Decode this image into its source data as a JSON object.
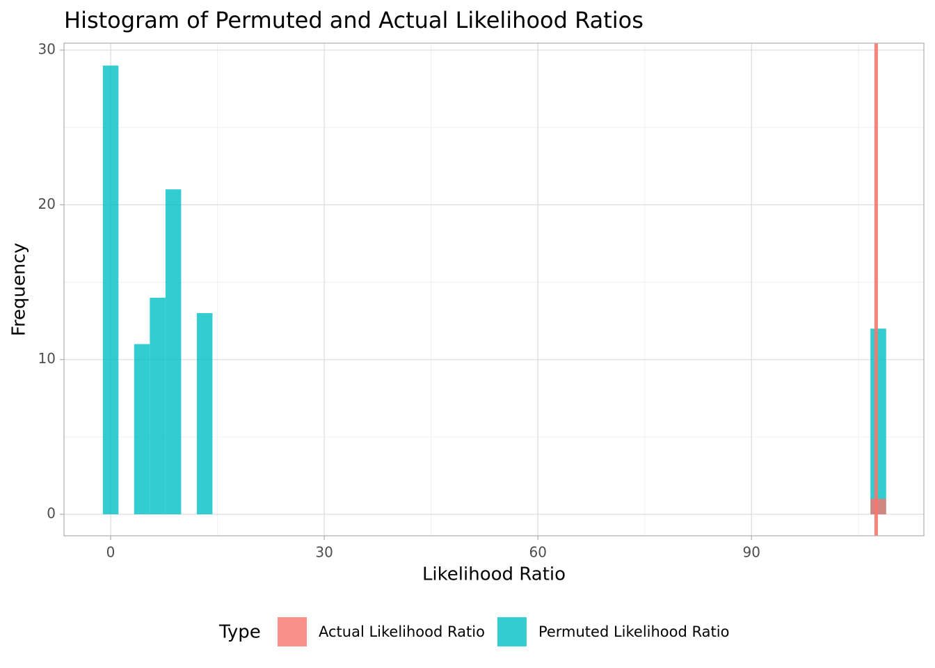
{
  "chart_data": {
    "type": "histogram",
    "title": "Histogram of Permuted and Actual Likelihood Ratios",
    "x_label": "Likelihood Ratio",
    "y_label": "Frequency",
    "legend_title": "Type",
    "legend_position": "bottom",
    "grid": true,
    "bins": [
      -1.1,
      1.1,
      3.3,
      5.5,
      7.7,
      9.9,
      12.1,
      14.3,
      16.5,
      18.7,
      20.9,
      23.1,
      25.3,
      27.5,
      29.7,
      31.9,
      34.1,
      36.3,
      38.5,
      40.7,
      42.9,
      45.1,
      47.3,
      49.5,
      51.7,
      53.9,
      56.1,
      58.3,
      60.5,
      62.7,
      64.9,
      67.1,
      69.3,
      71.5,
      73.7,
      75.9,
      78.1,
      80.3,
      82.5,
      84.7,
      86.9,
      89.1,
      91.3,
      93.5,
      95.7,
      97.9,
      100.1,
      102.3,
      104.5,
      106.7,
      108.9
    ],
    "series": [
      {
        "name": "Actual Likelihood Ratio",
        "color": "#F8766D",
        "values": [
          0,
          0,
          0,
          0,
          0,
          0,
          0,
          0,
          0,
          0,
          0,
          0,
          0,
          0,
          0,
          0,
          0,
          0,
          0,
          0,
          0,
          0,
          0,
          0,
          0,
          0,
          0,
          0,
          0,
          0,
          0,
          0,
          0,
          0,
          0,
          0,
          0,
          0,
          0,
          0,
          0,
          0,
          0,
          0,
          0,
          0,
          0,
          0,
          0,
          1
        ],
        "vline": 107.5
      },
      {
        "name": "Permuted Likelihood Ratio",
        "color": "#00BFC4",
        "values": [
          29,
          0,
          11,
          14,
          21,
          0,
          13,
          0,
          0,
          0,
          0,
          0,
          0,
          0,
          0,
          0,
          0,
          0,
          0,
          0,
          0,
          0,
          0,
          0,
          0,
          0,
          0,
          0,
          0,
          0,
          0,
          0,
          0,
          0,
          0,
          0,
          0,
          0,
          0,
          0,
          0,
          0,
          0,
          0,
          0,
          0,
          0,
          0,
          0,
          12
        ]
      }
    ],
    "xlim": [
      -6.55,
      114.2
    ],
    "ylim": [
      -1.39,
      30.45
    ],
    "xticks": [
      0,
      30,
      60,
      90
    ],
    "yticks": [
      0,
      10,
      20,
      30
    ]
  }
}
